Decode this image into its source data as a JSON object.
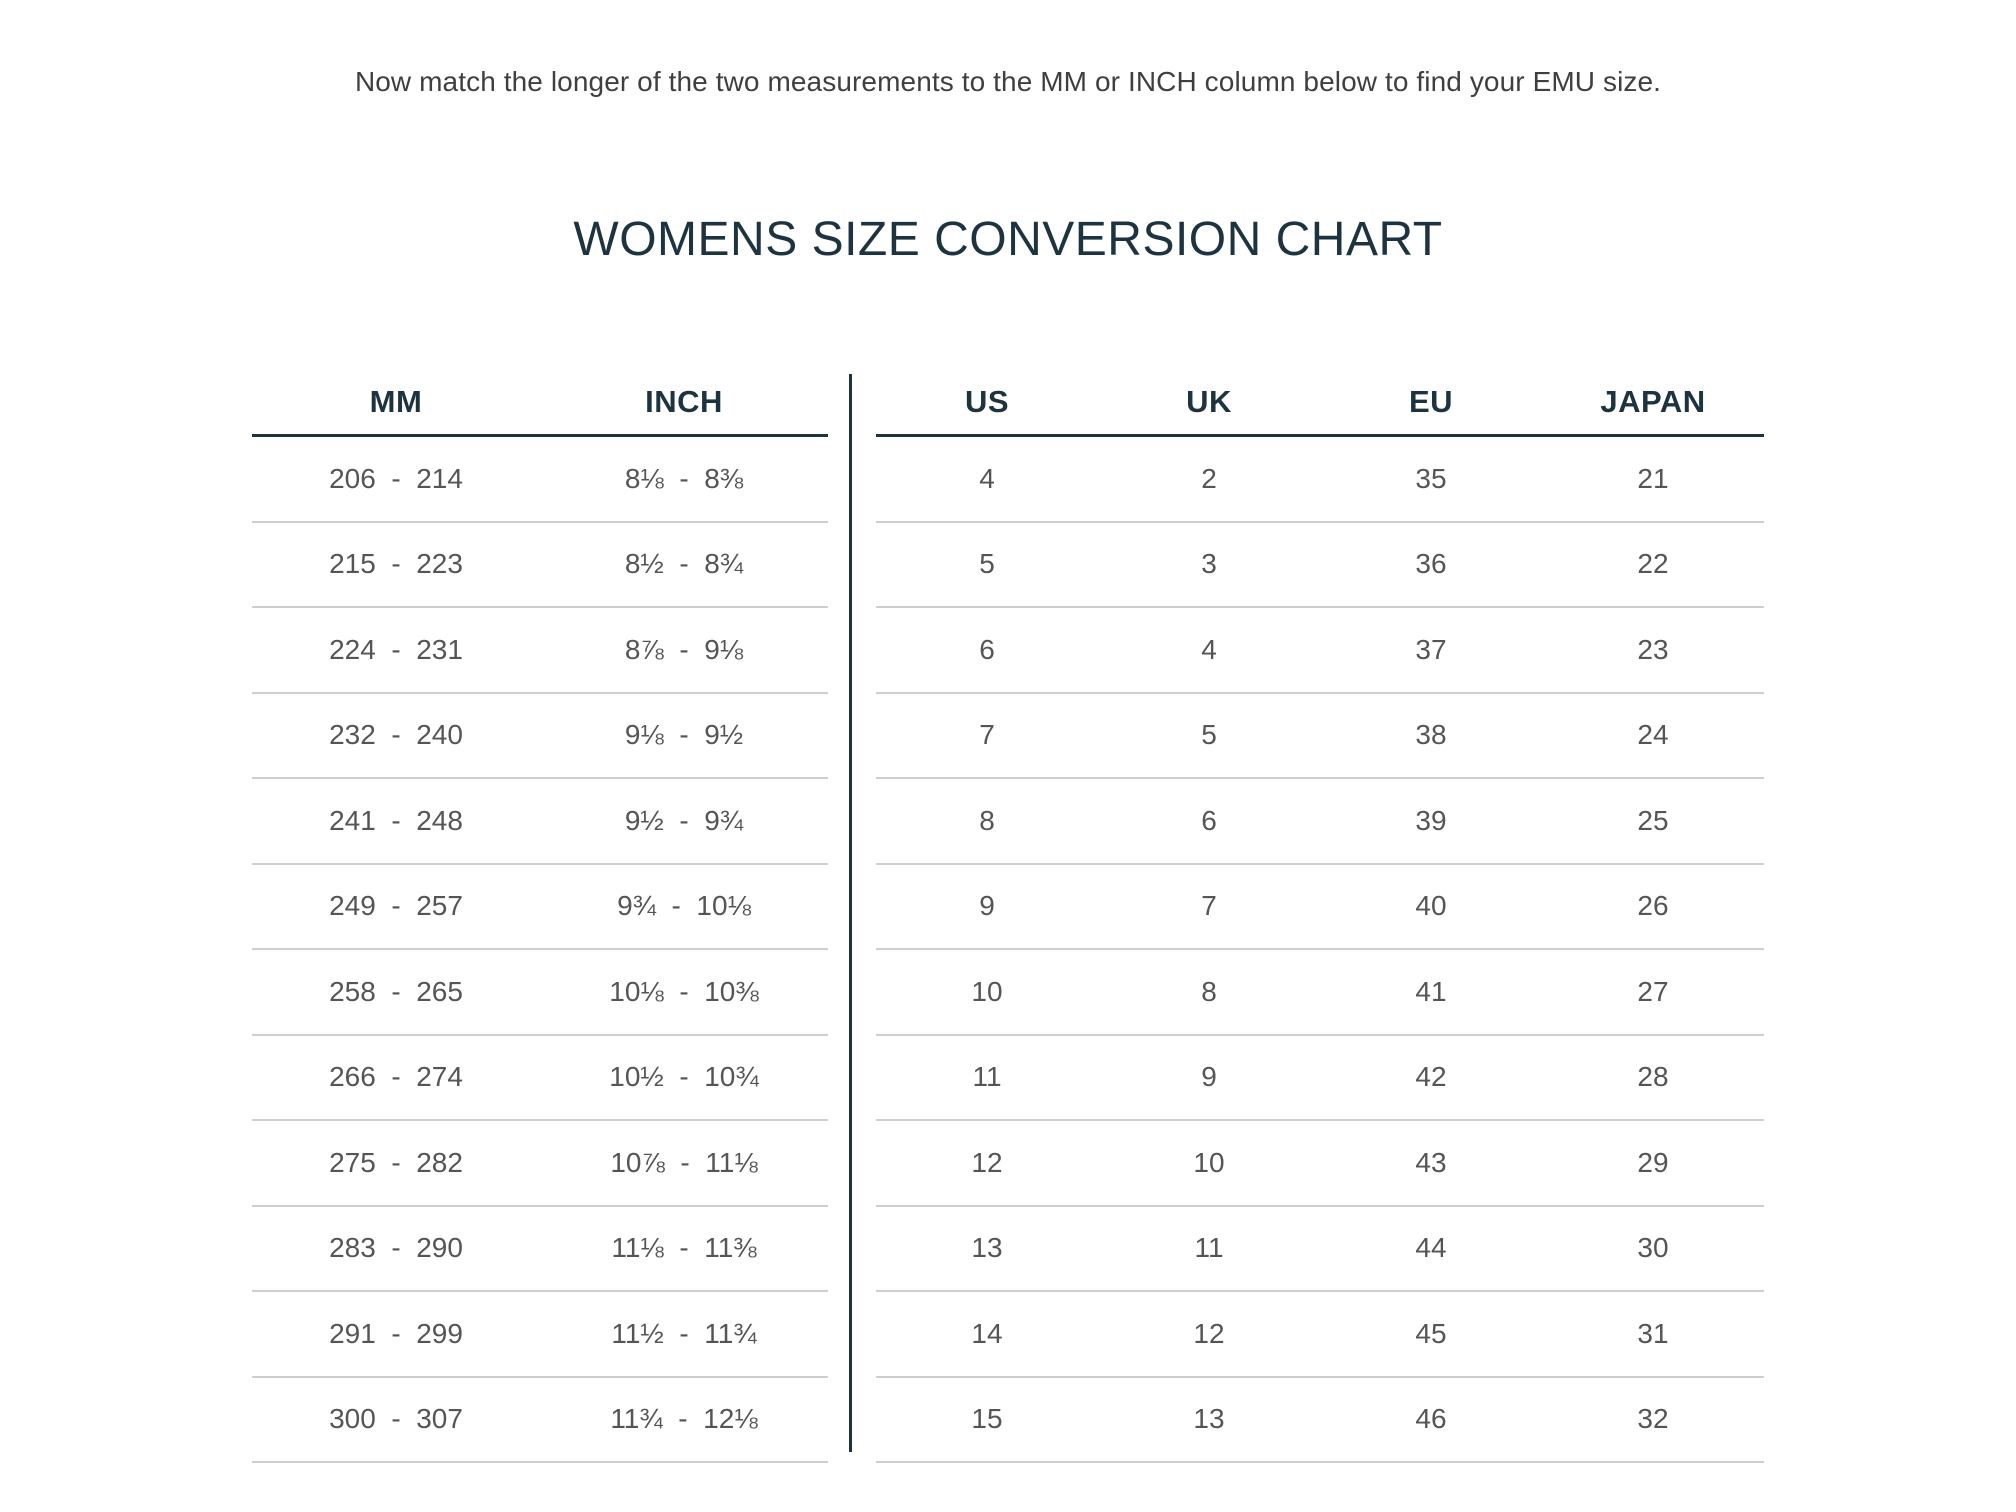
{
  "instruction": "Now match the longer of the two measurements to the MM or INCH column below to find your EMU size.",
  "title": "WOMENS SIZE CONVERSION CHART",
  "headers": {
    "mm": "MM",
    "inch": "INCH",
    "us": "US",
    "uk": "UK",
    "eu": "EU",
    "japan": "JAPAN"
  },
  "rows": [
    {
      "mm": "206  -  214",
      "inch": "8⅛  -  8⅜",
      "us": "4",
      "uk": "2",
      "eu": "35",
      "japan": "21"
    },
    {
      "mm": "215  -  223",
      "inch": "8½  -  8¾",
      "us": "5",
      "uk": "3",
      "eu": "36",
      "japan": "22"
    },
    {
      "mm": "224  -  231",
      "inch": "8⅞  -  9⅛",
      "us": "6",
      "uk": "4",
      "eu": "37",
      "japan": "23"
    },
    {
      "mm": "232  -  240",
      "inch": "9⅛  -  9½",
      "us": "7",
      "uk": "5",
      "eu": "38",
      "japan": "24"
    },
    {
      "mm": "241  -  248",
      "inch": "9½  -  9¾",
      "us": "8",
      "uk": "6",
      "eu": "39",
      "japan": "25"
    },
    {
      "mm": "249  -  257",
      "inch": "9¾  -  10⅛",
      "us": "9",
      "uk": "7",
      "eu": "40",
      "japan": "26"
    },
    {
      "mm": "258  -  265",
      "inch": "10⅛  -  10⅜",
      "us": "10",
      "uk": "8",
      "eu": "41",
      "japan": "27"
    },
    {
      "mm": "266  -  274",
      "inch": "10½  -  10¾",
      "us": "11",
      "uk": "9",
      "eu": "42",
      "japan": "28"
    },
    {
      "mm": "275  -  282",
      "inch": "10⅞  -  11⅛",
      "us": "12",
      "uk": "10",
      "eu": "43",
      "japan": "29"
    },
    {
      "mm": "283  -  290",
      "inch": "11⅛  -  11⅜",
      "us": "13",
      "uk": "11",
      "eu": "44",
      "japan": "30"
    },
    {
      "mm": "291  -  299",
      "inch": "11½  -  11¾",
      "us": "14",
      "uk": "12",
      "eu": "45",
      "japan": "31"
    },
    {
      "mm": "300  -  307",
      "inch": "11¾  -  12⅛",
      "us": "15",
      "uk": "13",
      "eu": "46",
      "japan": "32"
    }
  ]
}
